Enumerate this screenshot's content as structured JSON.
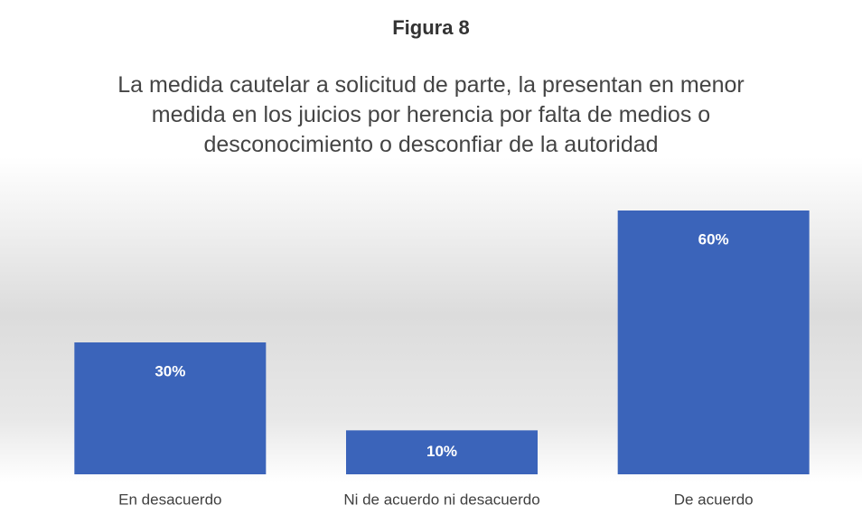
{
  "chart_data": {
    "type": "bar",
    "title": "Figura 8",
    "subtitle": "La medida cautelar a solicitud de parte, la presentan en menor medida en los juicios por herencia por falta de medios o desconocimiento o desconfiar de la autoridad",
    "categories": [
      "En desacuerdo",
      "Ni de acuerdo ni desacuerdo",
      "De acuerdo"
    ],
    "values": [
      30,
      10,
      60
    ],
    "value_labels": [
      "30%",
      "10%",
      "60%"
    ],
    "color": "#3b64ba",
    "grid": false
  }
}
